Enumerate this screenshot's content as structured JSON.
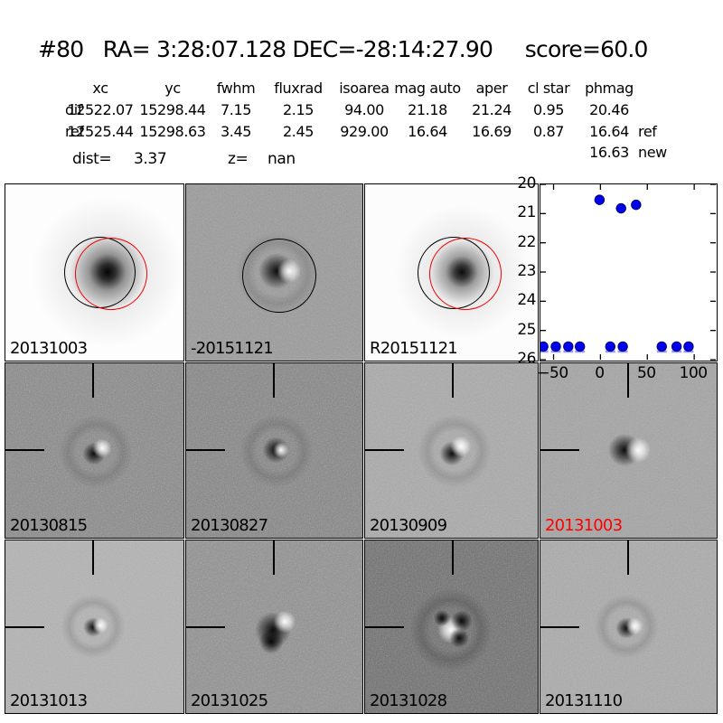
{
  "title": "#80   RA= 3:28:07.128 DEC=-28:14:27.90     score=60.0",
  "photometry_table": {
    "headers": [
      "xc",
      "yc",
      "fwhm",
      "fluxrad",
      "isoarea",
      "mag auto",
      "aper",
      "cl star",
      "phmag"
    ],
    "rows": [
      {
        "label": "dif",
        "values": [
          "12522.07",
          "15298.44",
          "7.15",
          "2.15",
          "94.00",
          "21.18",
          "21.24",
          "0.95",
          "20.46"
        ],
        "suffix": ""
      },
      {
        "label": "ref",
        "values": [
          "12525.44",
          "15298.63",
          "3.45",
          "2.45",
          "929.00",
          "16.64",
          "16.69",
          "0.87",
          "16.64"
        ],
        "suffix": "ref"
      }
    ],
    "extra": {
      "value": "16.63",
      "suffix": "new"
    },
    "dist": {
      "label": "dist=",
      "value": "3.37"
    },
    "z": {
      "label": "z=",
      "value": "nan"
    }
  },
  "cutouts": [
    {
      "label": "20131003",
      "label_color": "#000000",
      "bg": "#fdfdfd"
    },
    {
      "label": "-20151121",
      "label_color": "#000000",
      "bg": "#9a9a9a"
    },
    {
      "label": "R20151121",
      "label_color": "#000000",
      "bg": "#fcfcfc"
    },
    {
      "label": "20130815",
      "label_color": "#000000",
      "bg": "#878787"
    },
    {
      "label": "20130827",
      "label_color": "#000000",
      "bg": "#838383"
    },
    {
      "label": "20130909",
      "label_color": "#000000",
      "bg": "#aaaaaa"
    },
    {
      "label": "20131003",
      "label_color": "#ff0000",
      "bg": "#a4a4a4"
    },
    {
      "label": "20131013",
      "label_color": "#000000",
      "bg": "#b4b4b4"
    },
    {
      "label": "20131025",
      "label_color": "#000000",
      "bg": "#8e8e8e"
    },
    {
      "label": "20131028",
      "label_color": "#000000",
      "bg": "#6d6d6d"
    },
    {
      "label": "20131110",
      "label_color": "#000000",
      "bg": "#ababab"
    }
  ],
  "chart_data": {
    "type": "scatter",
    "title": "",
    "xlabel": "",
    "ylabel": "",
    "xlim": [
      -64,
      123
    ],
    "ylim": [
      20,
      26
    ],
    "y_inverted": true,
    "grid": false,
    "x_ticks": [
      -50,
      0,
      50,
      100
    ],
    "x_tick_labels": [
      "−50",
      "0",
      "50",
      "100"
    ],
    "y_ticks": [
      20,
      21,
      22,
      23,
      24,
      25,
      26
    ],
    "y_tick_labels": [
      "20",
      "21",
      "22",
      "23",
      "24",
      "25",
      "26"
    ],
    "marker_color": "#0000ee",
    "marker_edge_color": "#000070",
    "limit_bar_color": "#9a9aff",
    "series": [
      {
        "name": "detections",
        "marker": "circle",
        "points": [
          [
            -1,
            20.53
          ],
          [
            22,
            20.82
          ],
          [
            38,
            20.7
          ]
        ]
      },
      {
        "name": "upper-limits",
        "marker": "circle-with-bar",
        "points": [
          [
            -61,
            25.55
          ],
          [
            -47.6,
            25.55
          ],
          [
            -34.3,
            25.55
          ],
          [
            -21.9,
            25.55
          ],
          [
            10.5,
            25.55
          ],
          [
            23.8,
            25.55
          ],
          [
            65.4,
            25.55
          ],
          [
            81.2,
            25.55
          ],
          [
            94,
            25.55
          ]
        ]
      }
    ]
  }
}
